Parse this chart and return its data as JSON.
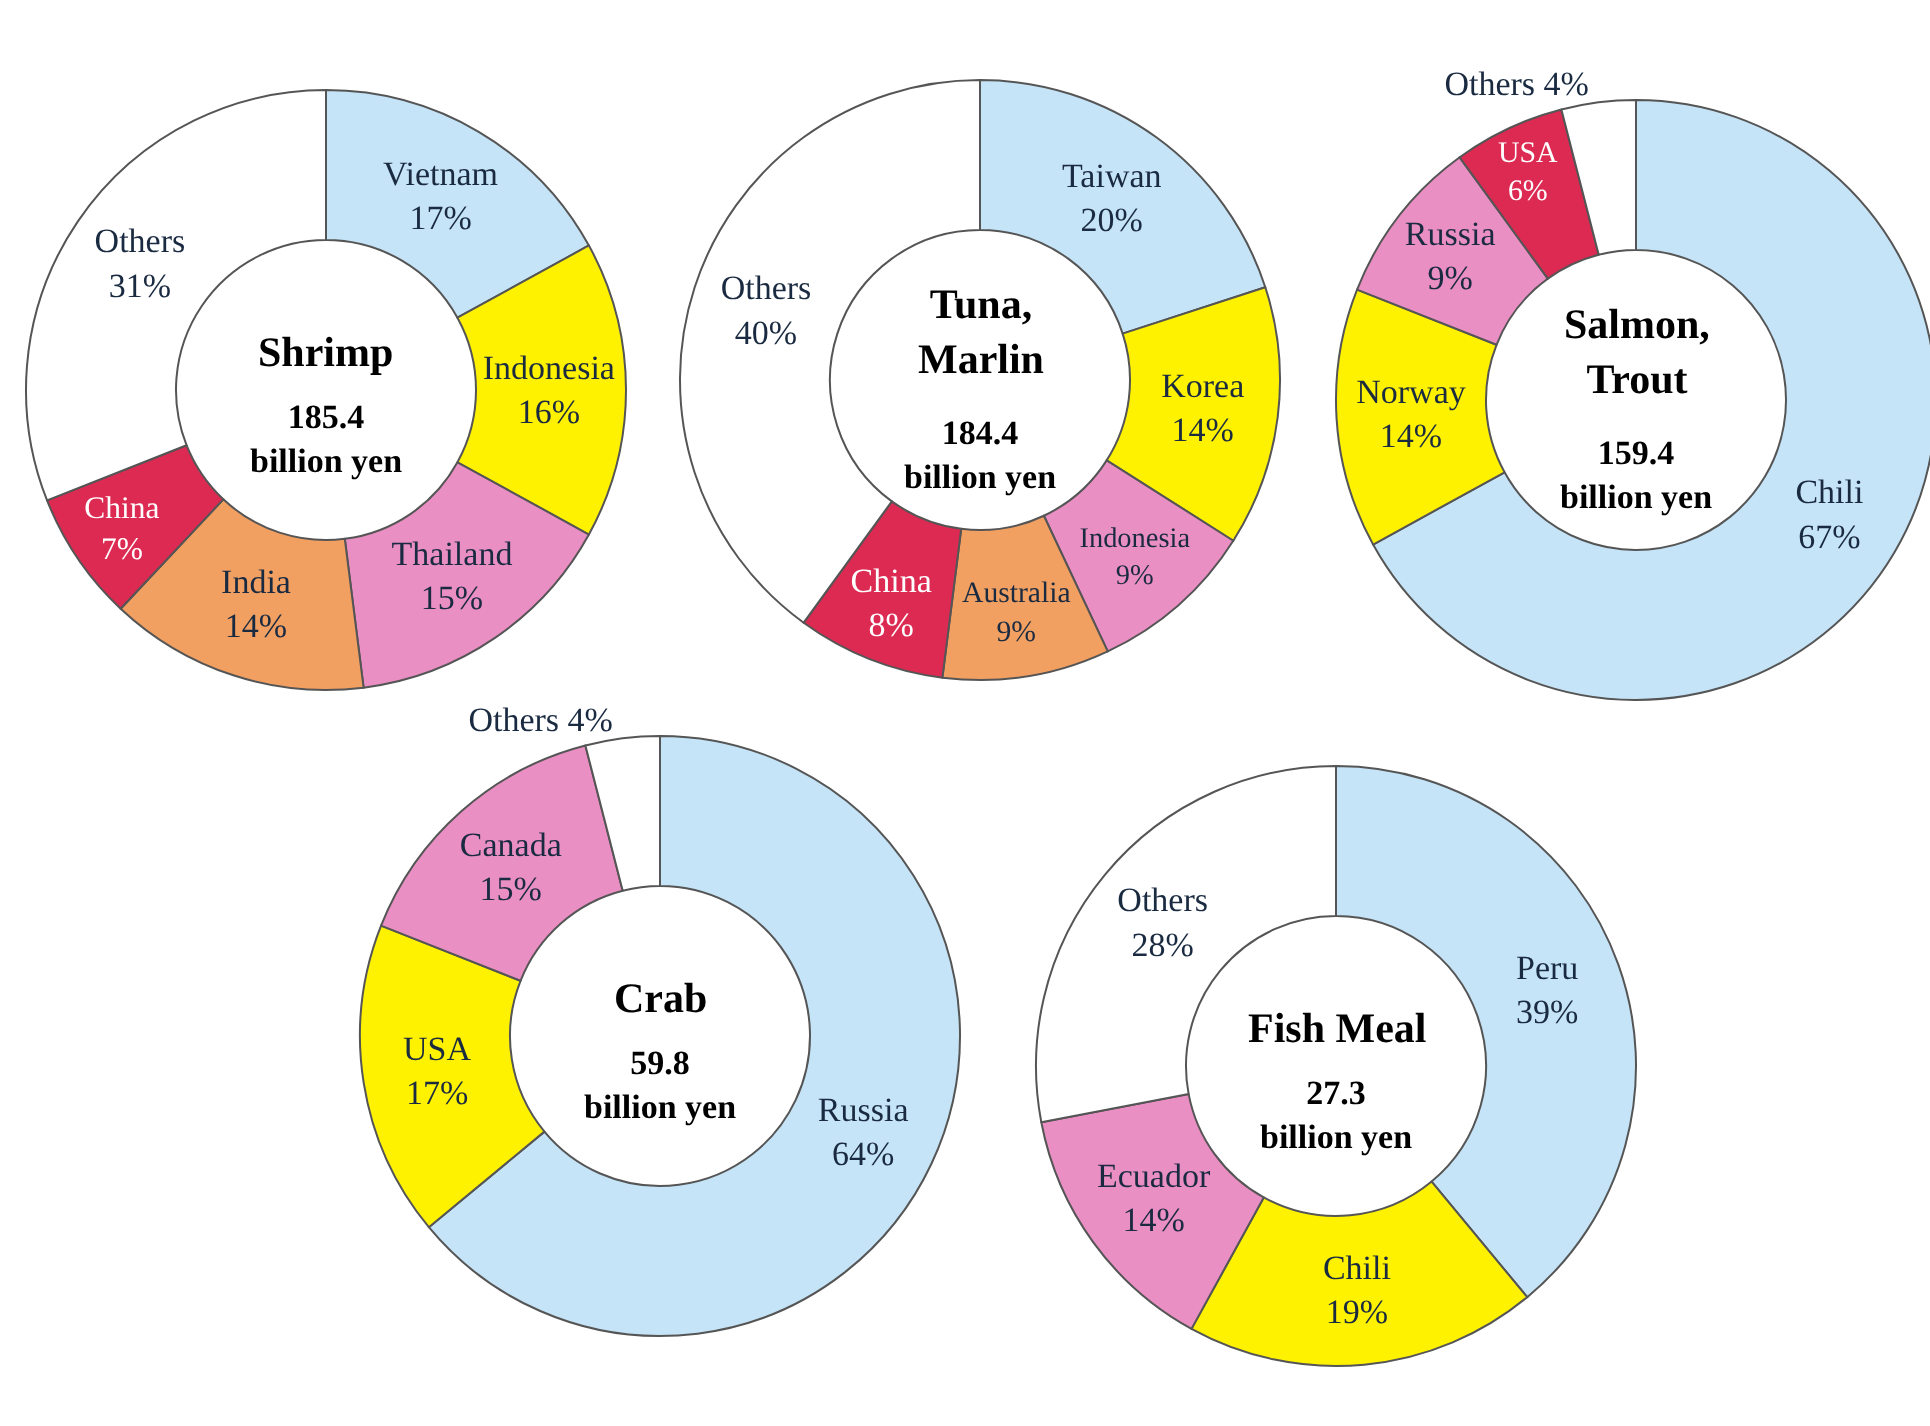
{
  "chart_data": [
    {
      "type": "donut",
      "title": "Shrimp",
      "subtitle": "185.4 billion yen",
      "categories": [
        "Vietnam",
        "Indonesia",
        "Thailand",
        "India",
        "China",
        "Others"
      ],
      "values": [
        17,
        16,
        15,
        14,
        7,
        31
      ],
      "value_labels": [
        "17%",
        "16%",
        "15%",
        "14%",
        "7%",
        "31%"
      ],
      "colors": [
        "#c6e4f7",
        "#fff200",
        "#ea8fc4",
        "#f2a062",
        "#dc2a52",
        "#ffffff"
      ]
    },
    {
      "type": "donut",
      "title": "Tuna, Marlin",
      "subtitle": "184.4 billion yen",
      "categories": [
        "Taiwan",
        "Korea",
        "Indonesia",
        "Australia",
        "China",
        "Others"
      ],
      "values": [
        20,
        14,
        9,
        9,
        8,
        40
      ],
      "value_labels": [
        "20%",
        "14%",
        "9%",
        "9%",
        "8%",
        "40%"
      ],
      "colors": [
        "#c6e4f7",
        "#fff200",
        "#ea8fc4",
        "#f2a062",
        "#dc2a52",
        "#ffffff"
      ]
    },
    {
      "type": "donut",
      "title": "Salmon, Trout",
      "subtitle": "159.4 billion yen",
      "categories": [
        "Chili",
        "Norway",
        "Russia",
        "USA",
        "Others"
      ],
      "values": [
        67,
        14,
        9,
        6,
        4
      ],
      "value_labels": [
        "67%",
        "14%",
        "9%",
        "6%",
        "4%"
      ],
      "colors": [
        "#c6e4f7",
        "#fff200",
        "#ea8fc4",
        "#dc2a52",
        "#ffffff"
      ]
    },
    {
      "type": "donut",
      "title": "Crab",
      "subtitle": "59.8 billion yen",
      "categories": [
        "Russia",
        "USA",
        "Canada",
        "Others"
      ],
      "values": [
        64,
        17,
        15,
        4
      ],
      "value_labels": [
        "64%",
        "17%",
        "15%",
        "4%"
      ],
      "colors": [
        "#c6e4f7",
        "#fff200",
        "#ea8fc4",
        "#ffffff"
      ]
    },
    {
      "type": "donut",
      "title": "Fish Meal",
      "subtitle": "27.3 billion yen",
      "categories": [
        "Peru",
        "Chili",
        "Ecuador",
        "Others"
      ],
      "values": [
        39,
        19,
        14,
        28
      ],
      "value_labels": [
        "39%",
        "19%",
        "14%",
        "28%"
      ],
      "colors": [
        "#c6e4f7",
        "#fff200",
        "#ea8fc4",
        "#ffffff"
      ]
    }
  ]
}
